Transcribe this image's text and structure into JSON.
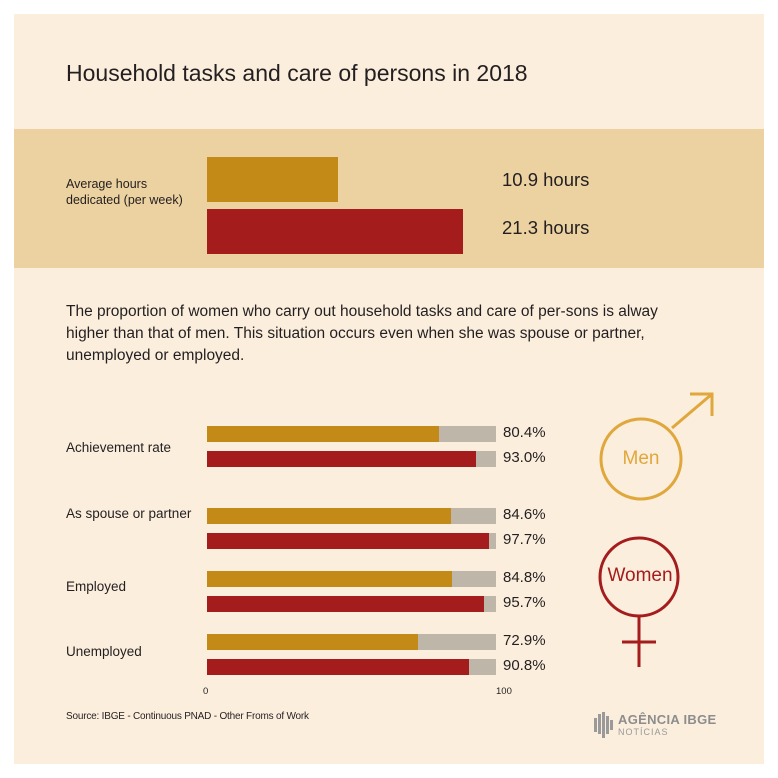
{
  "title": "Household tasks and care of persons in 2018",
  "average_hours": {
    "label": "Average hours dedicated (per week)",
    "men_value": 10.9,
    "women_value": 21.3,
    "men_text": "10.9 hours",
    "women_text": "21.3 hours"
  },
  "description": "The proportion of women who carry out household tasks and care of per-sons is alway higher than that of men. This situation occurs even when she was spouse or partner, unemployed or employed.",
  "colors": {
    "men": "#c48a17",
    "women": "#a51c1c",
    "track": "#bfb6aa",
    "background": "#fbeedd",
    "band": "#ecd2a1",
    "men_symbol": "#e0a73c",
    "women_symbol": "#a51c1c"
  },
  "chart_data": {
    "type": "bar",
    "orientation": "horizontal",
    "categories": [
      "Achievement rate",
      "As spouse or partner",
      "Employed",
      "Unemployed"
    ],
    "series": [
      {
        "name": "Men",
        "values": [
          80.4,
          84.6,
          84.8,
          72.9
        ],
        "labels": [
          "80.4%",
          "84.6%",
          "84.8%",
          "72.9%"
        ]
      },
      {
        "name": "Women",
        "values": [
          93.0,
          97.7,
          95.7,
          90.8
        ],
        "labels": [
          "93.0%",
          "97.7%",
          "95.7%",
          "90.8%"
        ]
      }
    ],
    "xlim": [
      0,
      100
    ],
    "ticks": [
      "0",
      "100"
    ],
    "grid": false
  },
  "symbols": {
    "men_label": "Men",
    "women_label": "Women",
    "men_icon": "male-symbol-icon",
    "women_icon": "female-symbol-icon"
  },
  "source": "Source: IBGE - Continuous PNAD - Other Froms of Work",
  "logo": {
    "name": "AGÊNCIA IBGE",
    "sub": "NOTÍCIAS",
    "icon": "ibge-logo-icon"
  }
}
